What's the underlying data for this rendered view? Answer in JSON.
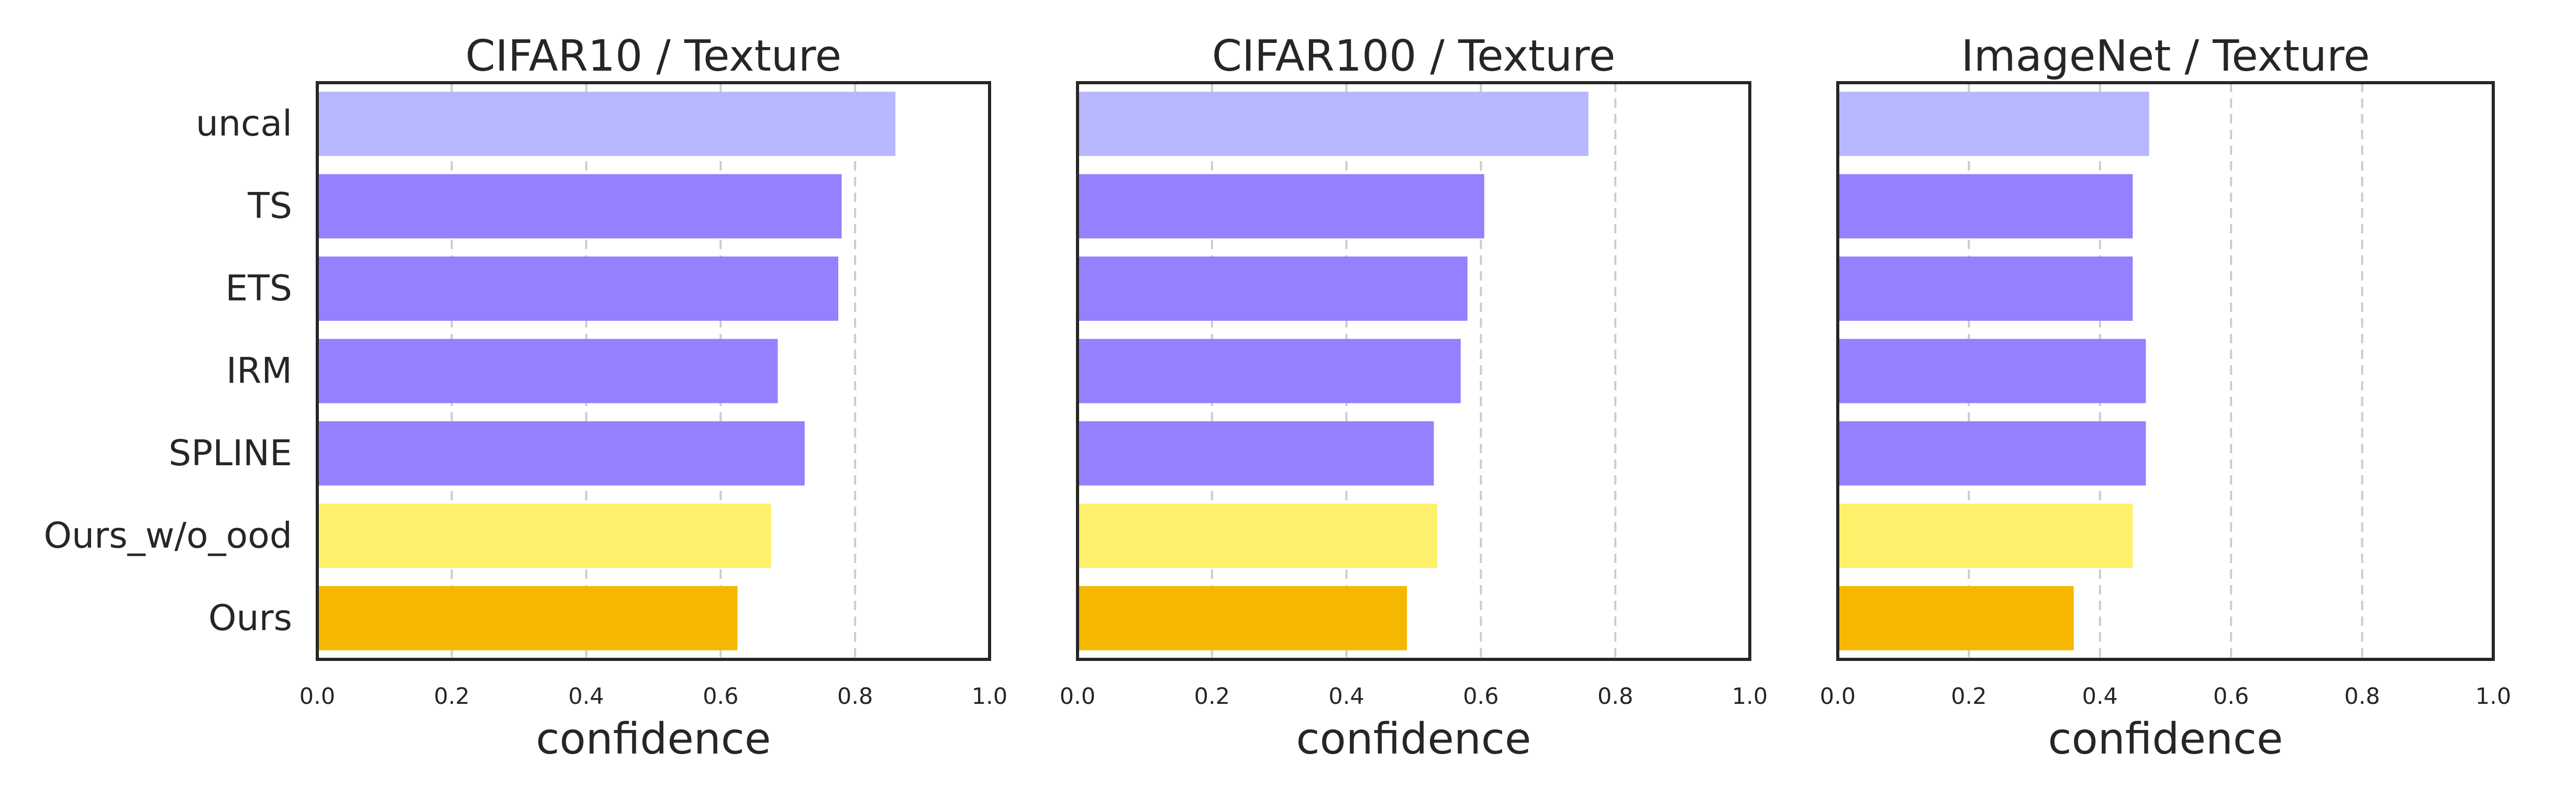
{
  "chart_data": [
    {
      "type": "bar",
      "orientation": "horizontal",
      "title": "CIFAR10 / Texture",
      "xlabel": "confidence",
      "ylabel": "",
      "xlim": [
        0.0,
        1.0
      ],
      "xticks": [
        "0.0",
        "0.2",
        "0.4",
        "0.6",
        "0.8",
        "1.0"
      ],
      "grid": "vertical dashed",
      "categories": [
        "uncal",
        "TS",
        "ETS",
        "IRM",
        "SPLINE",
        "Ours_w/o_ood",
        "Ours"
      ],
      "values": [
        0.86,
        0.78,
        0.775,
        0.685,
        0.725,
        0.675,
        0.625
      ],
      "colors": [
        "#b7b7ff",
        "#9381ff",
        "#9381ff",
        "#9381ff",
        "#9381ff",
        "#fff06b",
        "#f5b700"
      ]
    },
    {
      "type": "bar",
      "orientation": "horizontal",
      "title": "CIFAR100 / Texture",
      "xlabel": "confidence",
      "ylabel": "",
      "xlim": [
        0.0,
        1.0
      ],
      "xticks": [
        "0.0",
        "0.2",
        "0.4",
        "0.6",
        "0.8",
        "1.0"
      ],
      "grid": "vertical dashed",
      "categories": [
        "uncal",
        "TS",
        "ETS",
        "IRM",
        "SPLINE",
        "Ours_w/o_ood",
        "Ours"
      ],
      "values": [
        0.76,
        0.605,
        0.58,
        0.57,
        0.53,
        0.535,
        0.49
      ],
      "colors": [
        "#b7b7ff",
        "#9381ff",
        "#9381ff",
        "#9381ff",
        "#9381ff",
        "#fff06b",
        "#f5b700"
      ]
    },
    {
      "type": "bar",
      "orientation": "horizontal",
      "title": "ImageNet / Texture",
      "xlabel": "confidence",
      "ylabel": "",
      "xlim": [
        0.0,
        1.0
      ],
      "xticks": [
        "0.0",
        "0.2",
        "0.4",
        "0.6",
        "0.8",
        "1.0"
      ],
      "grid": "vertical dashed",
      "categories": [
        "uncal",
        "TS",
        "ETS",
        "IRM",
        "SPLINE",
        "Ours_w/o_ood",
        "Ours"
      ],
      "values": [
        0.475,
        0.45,
        0.45,
        0.47,
        0.47,
        0.45,
        0.36
      ],
      "colors": [
        "#b7b7ff",
        "#9381ff",
        "#9381ff",
        "#9381ff",
        "#9381ff",
        "#fff06b",
        "#f5b700"
      ]
    }
  ]
}
